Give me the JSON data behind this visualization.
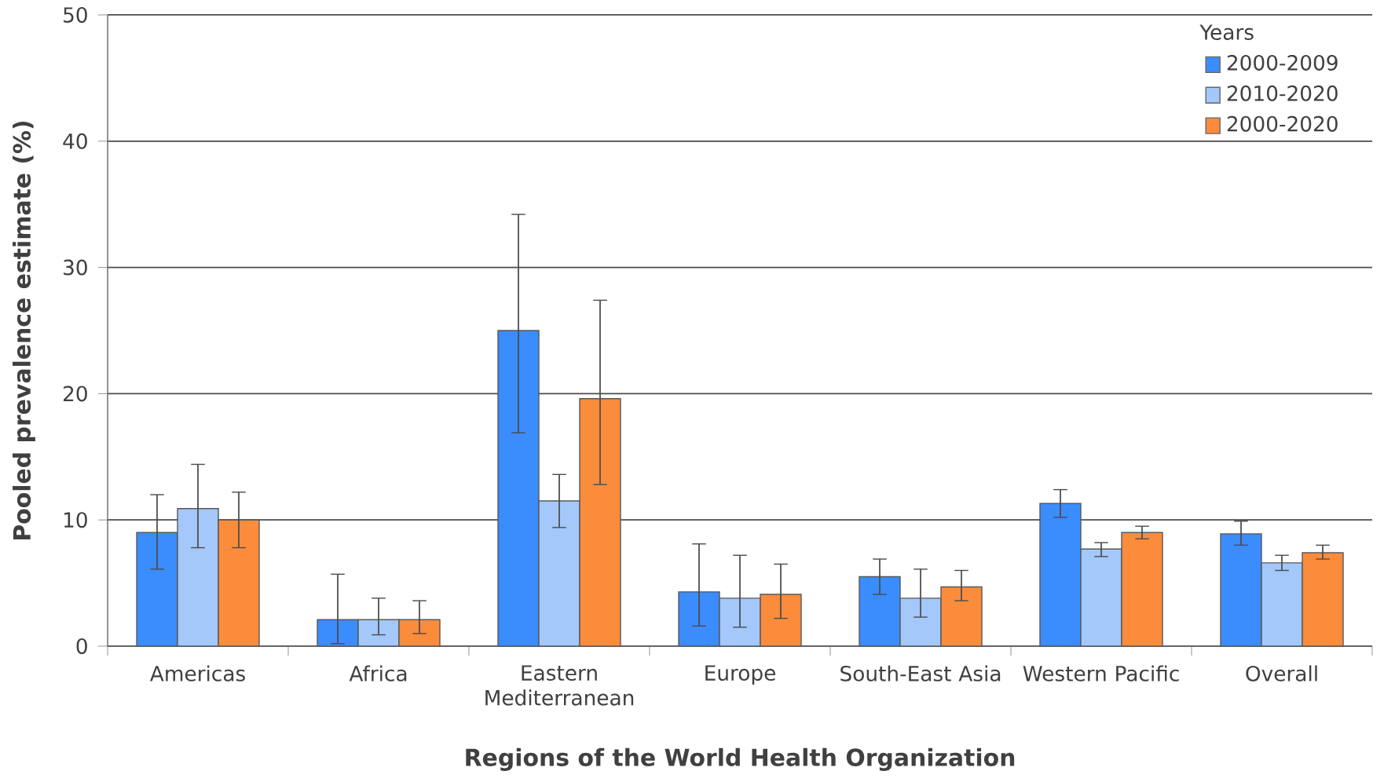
{
  "chart_data": {
    "type": "bar",
    "xlabel": "Regions of the World Health Organization",
    "ylabel": "Pooled prevalence estimate (%)",
    "legend_title": "Years",
    "categories": [
      "Americas",
      "Africa",
      "Eastern Mediterranean",
      "Europe",
      "South-East Asia",
      "Western Pacific",
      "Overall"
    ],
    "series": [
      {
        "name": "2000-2009",
        "color": "#3b8cfc",
        "values": [
          9.0,
          2.1,
          25.0,
          4.3,
          5.5,
          11.3,
          8.9
        ],
        "errors": [
          [
            6.1,
            12.0
          ],
          [
            0.2,
            5.7
          ],
          [
            16.9,
            34.2
          ],
          [
            1.6,
            8.1
          ],
          [
            4.1,
            6.9
          ],
          [
            10.2,
            12.4
          ],
          [
            8.0,
            9.9
          ]
        ]
      },
      {
        "name": "2010-2020",
        "color": "#a3c8f9",
        "values": [
          10.9,
          2.1,
          11.5,
          3.8,
          3.8,
          7.7,
          6.6
        ],
        "errors": [
          [
            7.8,
            14.4
          ],
          [
            0.9,
            3.8
          ],
          [
            9.4,
            13.6
          ],
          [
            1.5,
            7.2
          ],
          [
            2.3,
            6.1
          ],
          [
            7.1,
            8.2
          ],
          [
            6.0,
            7.2
          ]
        ]
      },
      {
        "name": "2000-2020",
        "color": "#fb8c3c",
        "values": [
          10.0,
          2.1,
          19.6,
          4.1,
          4.7,
          9.0,
          7.4
        ],
        "errors": [
          [
            7.8,
            12.2
          ],
          [
            1.0,
            3.6
          ],
          [
            12.8,
            27.4
          ],
          [
            2.2,
            6.5
          ],
          [
            3.6,
            6.0
          ],
          [
            8.5,
            9.5
          ],
          [
            6.9,
            8.0
          ]
        ]
      }
    ],
    "ylim": [
      0,
      50
    ],
    "yticks": [
      0,
      10,
      20,
      30,
      40,
      50
    ],
    "grid": "y",
    "legend": "top right"
  }
}
